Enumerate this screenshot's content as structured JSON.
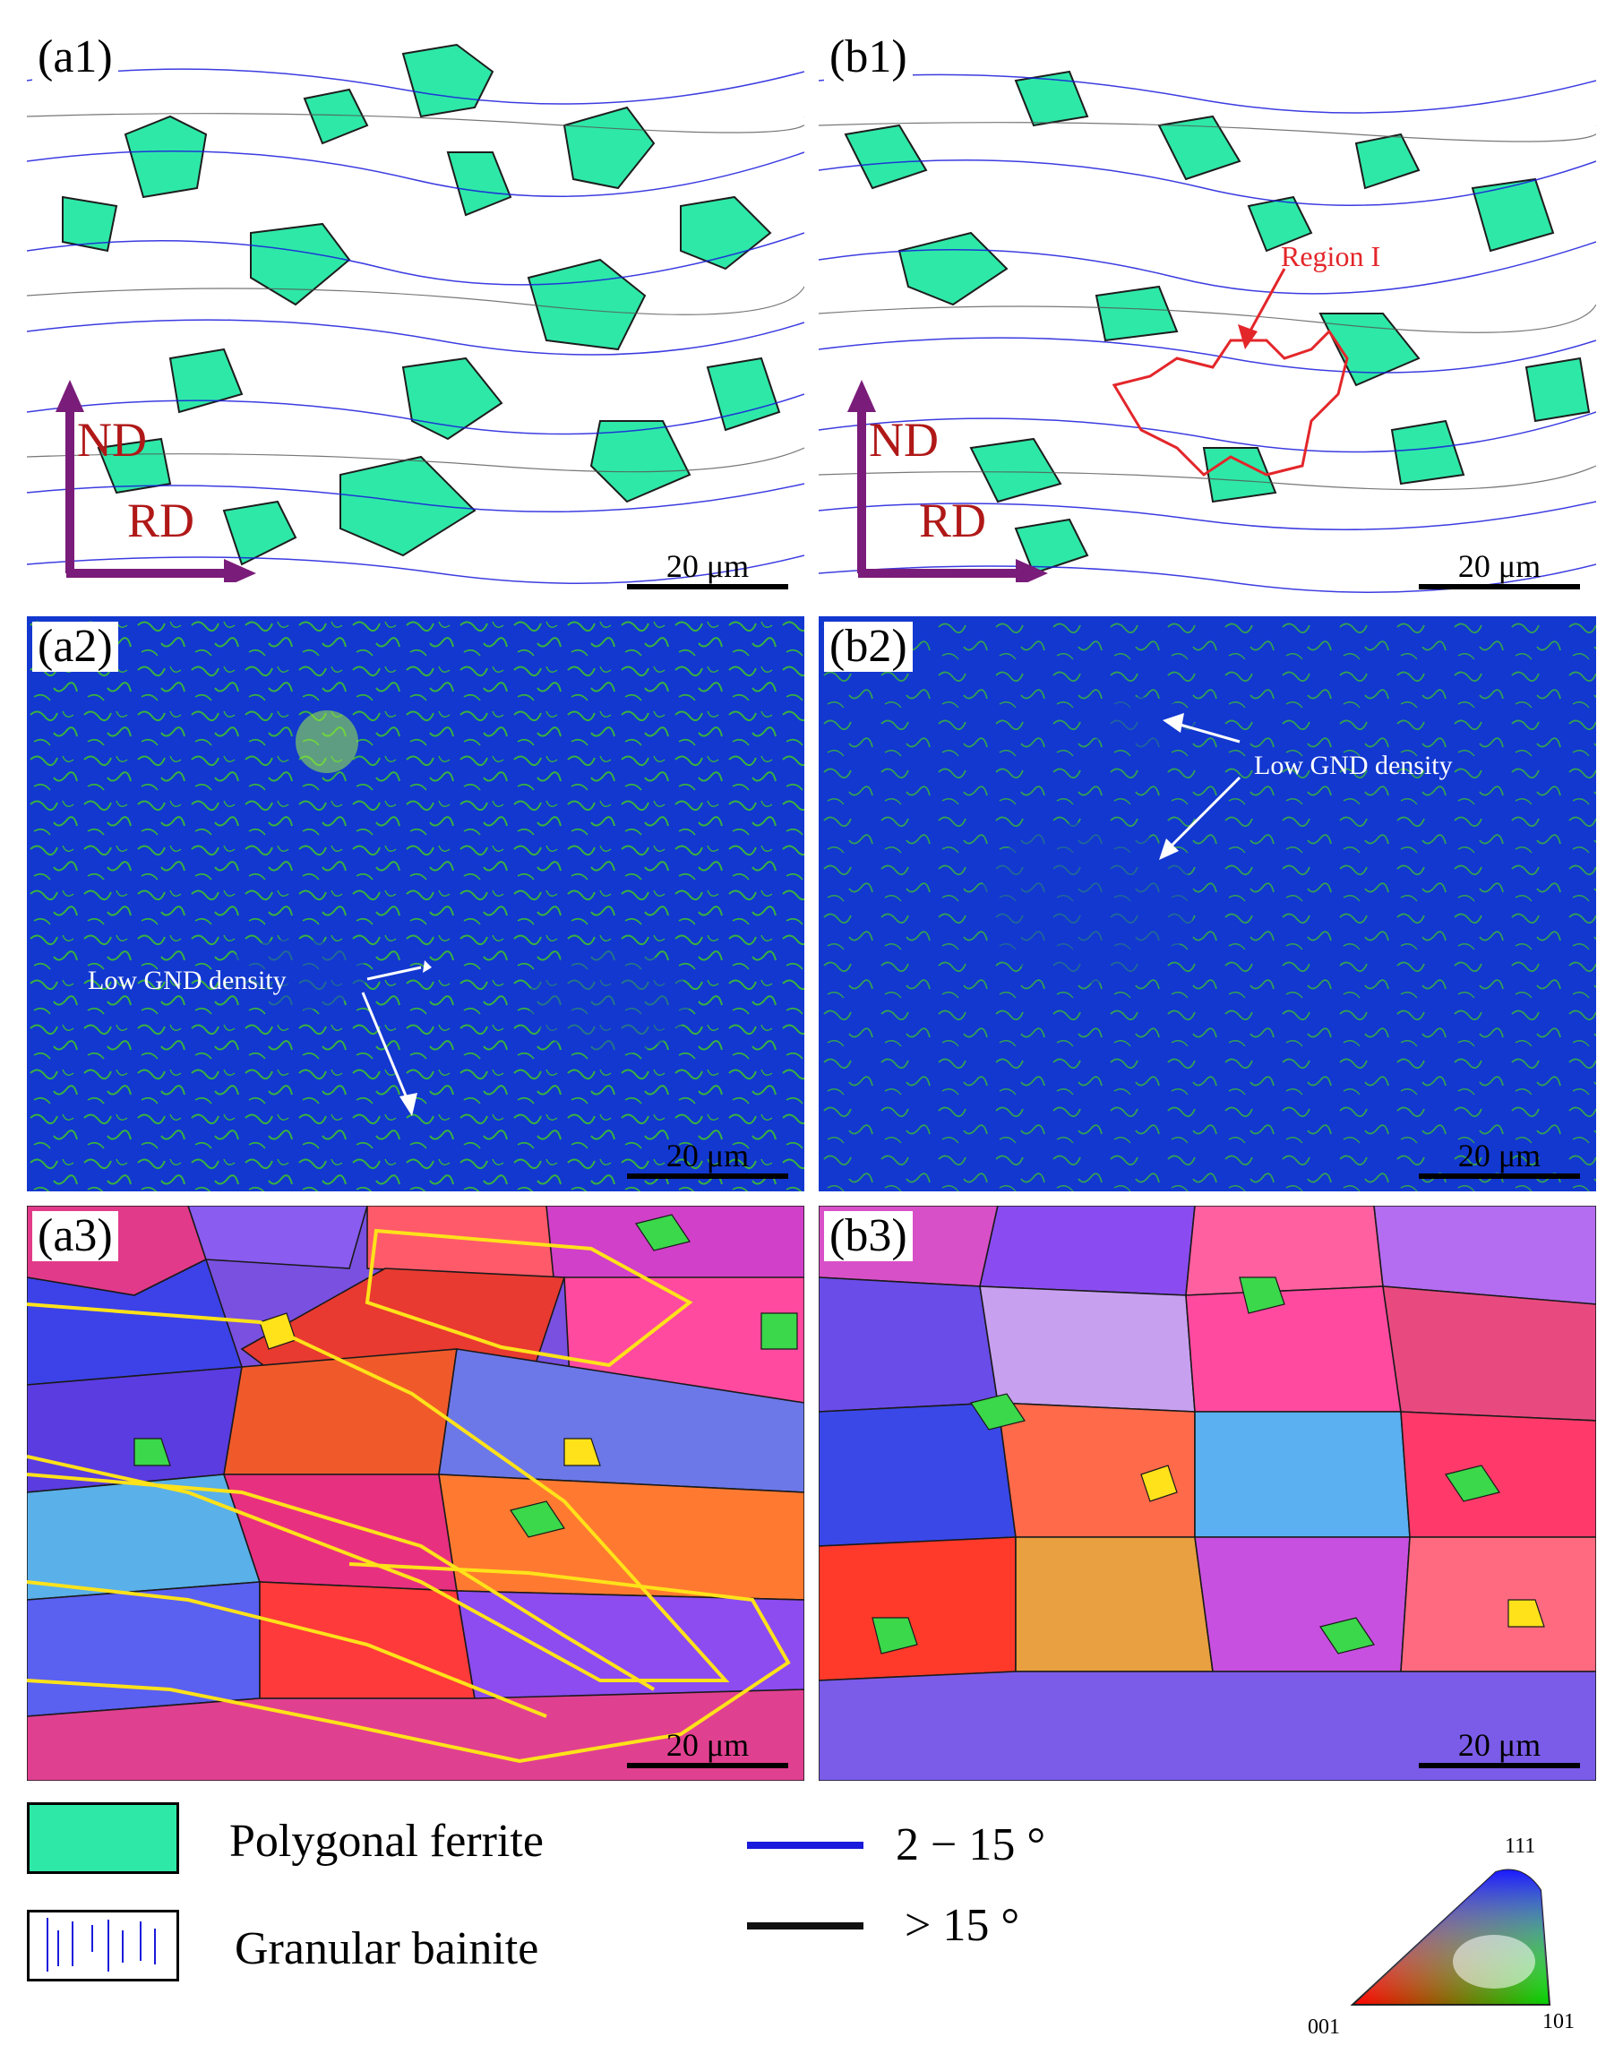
{
  "panels": {
    "a1": "(a1)",
    "b1": "(b1)",
    "a2": "(a2)",
    "b2": "(b2)",
    "a3": "(a3)",
    "b3": "(b3)"
  },
  "scale_bar": "20 μm",
  "axes": {
    "nd": "ND",
    "rd": "RD"
  },
  "annotations": {
    "region": "Region I",
    "low_gnd": "Low GND density"
  },
  "legend": {
    "polygonal_ferrite": "Polygonal ferrite",
    "granular_bainite": "Granular bainite",
    "low_angle": "2 − 15 °",
    "high_angle": "> 15 °"
  },
  "ipf_triangle": {
    "top": "111",
    "left": "001",
    "right": "101"
  },
  "colors": {
    "ferrite": "#2ee8a8",
    "low_angle_boundary": "#1a1adc",
    "high_angle_boundary": "#111111",
    "gnd_background": "#1238d0",
    "gnd_high": "#44d01a",
    "region_outline": "#e3262a",
    "prior_grain_outline": "#ffe21a"
  }
}
